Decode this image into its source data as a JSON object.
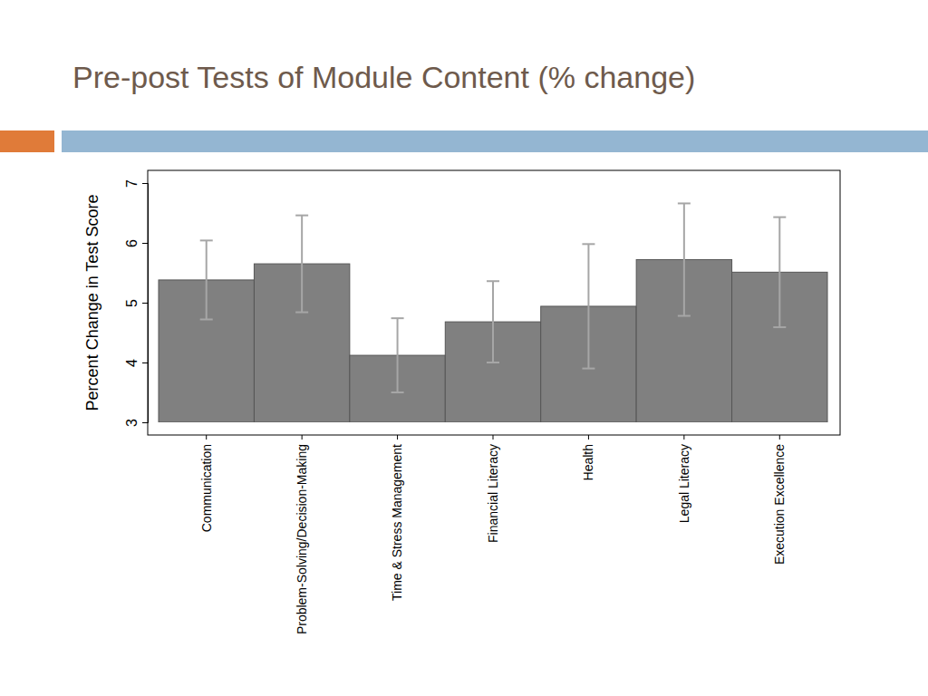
{
  "chart_data": {
    "type": "bar",
    "title": "Pre-post Tests of Module Content (% change)",
    "y_label": "Percent Change in Test Score",
    "categories": [
      "Communication",
      "Problem-Solving/Decision-Making",
      "Time & Stress Management",
      "Financial Literacy",
      "Health",
      "Legal Literacy",
      "Execution Excellence"
    ],
    "values": [
      5.38,
      5.65,
      4.12,
      4.68,
      4.94,
      5.72,
      5.51
    ],
    "errors": [
      0.66,
      0.81,
      0.62,
      0.68,
      1.04,
      0.94,
      0.92
    ],
    "color": "#808080",
    "ylim": [
      3,
      7
    ],
    "yticks": [
      3,
      4,
      5,
      6,
      7
    ],
    "grid": false
  }
}
